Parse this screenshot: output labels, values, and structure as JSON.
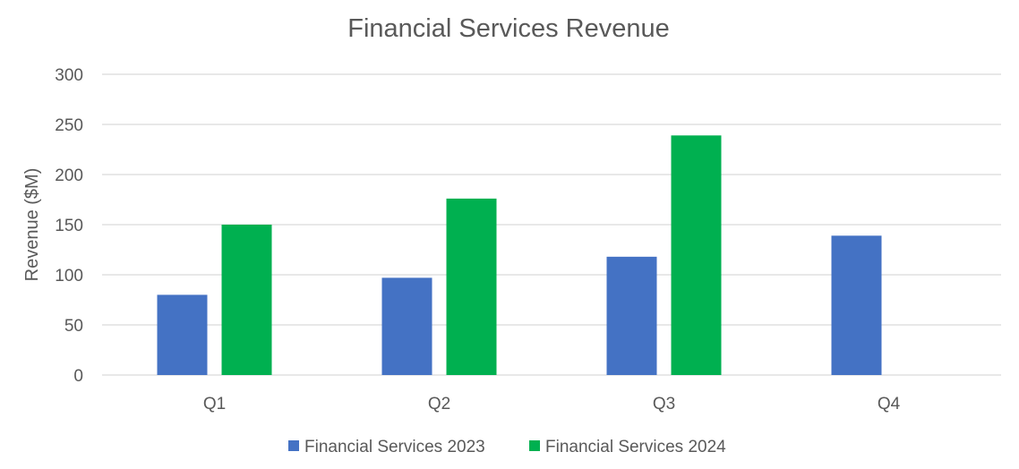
{
  "chart_data": {
    "type": "bar",
    "title": "Financial Services Revenue",
    "xlabel": "",
    "ylabel": "Revenue ($M)",
    "categories": [
      "Q1",
      "Q2",
      "Q3",
      "Q4"
    ],
    "ylim": [
      0,
      300
    ],
    "yticks": [
      0,
      50,
      100,
      150,
      200,
      250,
      300
    ],
    "grid": true,
    "legend_position": "bottom",
    "series": [
      {
        "name": "Financial Services 2023",
        "color": "#4472C4",
        "values": [
          80,
          97,
          118,
          139
        ]
      },
      {
        "name": "Financial Services 2024",
        "color": "#00B050",
        "values": [
          150,
          176,
          239,
          null
        ]
      }
    ]
  }
}
